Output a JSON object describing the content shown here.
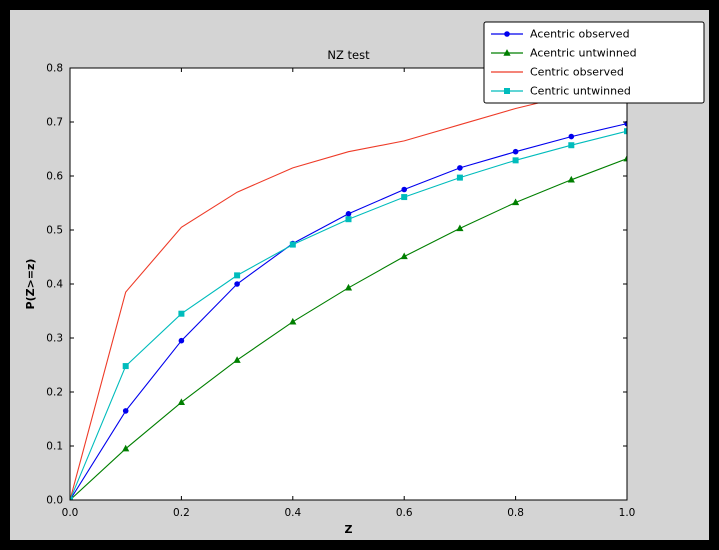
{
  "window": {
    "background": "#000000",
    "figure_background": "#d4d4d4",
    "axes_background": "#ffffff"
  },
  "chart_data": {
    "type": "line",
    "title": "NZ test",
    "xlabel": "Z",
    "ylabel": "P(Z>=z)",
    "xlim": [
      0.0,
      1.0
    ],
    "ylim": [
      0.0,
      0.8
    ],
    "grid": false,
    "legend_position": "upper right",
    "xticks": [
      0.0,
      0.2,
      0.4,
      0.6,
      0.8,
      1.0
    ],
    "xtick_labels": [
      "0.0",
      "0.2",
      "0.4",
      "0.6",
      "0.8",
      "1.0"
    ],
    "yticks": [
      0.0,
      0.1,
      0.2,
      0.3,
      0.4,
      0.5,
      0.6,
      0.7,
      0.8
    ],
    "ytick_labels": [
      "0.0",
      "0.1",
      "0.2",
      "0.3",
      "0.4",
      "0.5",
      "0.6",
      "0.7",
      "0.8"
    ],
    "x": [
      0.0,
      0.1,
      0.2,
      0.3,
      0.4,
      0.5,
      0.6,
      0.7,
      0.8,
      0.9,
      1.0
    ],
    "series": [
      {
        "name": "Acentric observed",
        "color": "#0000ee",
        "marker": "circle",
        "values": [
          0.0,
          0.165,
          0.295,
          0.4,
          0.475,
          0.53,
          0.575,
          0.615,
          0.645,
          0.673,
          0.697
        ]
      },
      {
        "name": "Acentric untwinned",
        "color": "#007f00",
        "marker": "triangle",
        "values": [
          0.0,
          0.095,
          0.181,
          0.259,
          0.33,
          0.393,
          0.451,
          0.503,
          0.551,
          0.593,
          0.632
        ]
      },
      {
        "name": "Centric observed",
        "color": "#ee3b28",
        "marker": "none",
        "values": [
          0.0,
          0.385,
          0.505,
          0.57,
          0.615,
          0.645,
          0.665,
          0.695,
          0.725,
          0.75,
          0.775
        ]
      },
      {
        "name": "Centric untwinned",
        "color": "#00bcbc",
        "marker": "square",
        "values": [
          0.0,
          0.248,
          0.345,
          0.416,
          0.473,
          0.52,
          0.561,
          0.597,
          0.629,
          0.657,
          0.683
        ]
      }
    ]
  }
}
